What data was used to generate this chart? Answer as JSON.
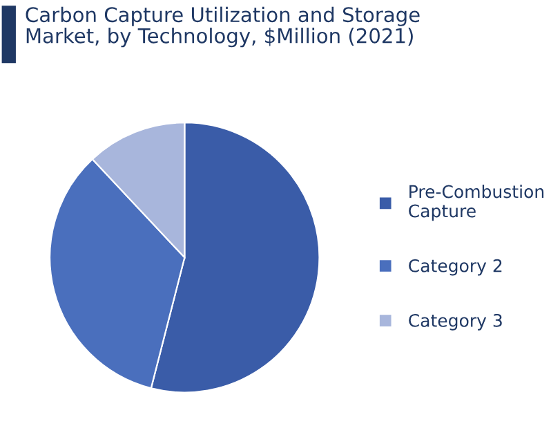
{
  "chart_data": {
    "type": "pie",
    "title": "Carbon Capture Utilization and Storage\nMarket, by Technology, $Million (2021)",
    "categories": [
      "Pre-Combustion\nCapture",
      "Category 2",
      "Category 3"
    ],
    "values": [
      54,
      34,
      12
    ],
    "colors": [
      "#3a5ca8",
      "#4a6fbd",
      "#a8b6dc"
    ],
    "legend": "right"
  }
}
